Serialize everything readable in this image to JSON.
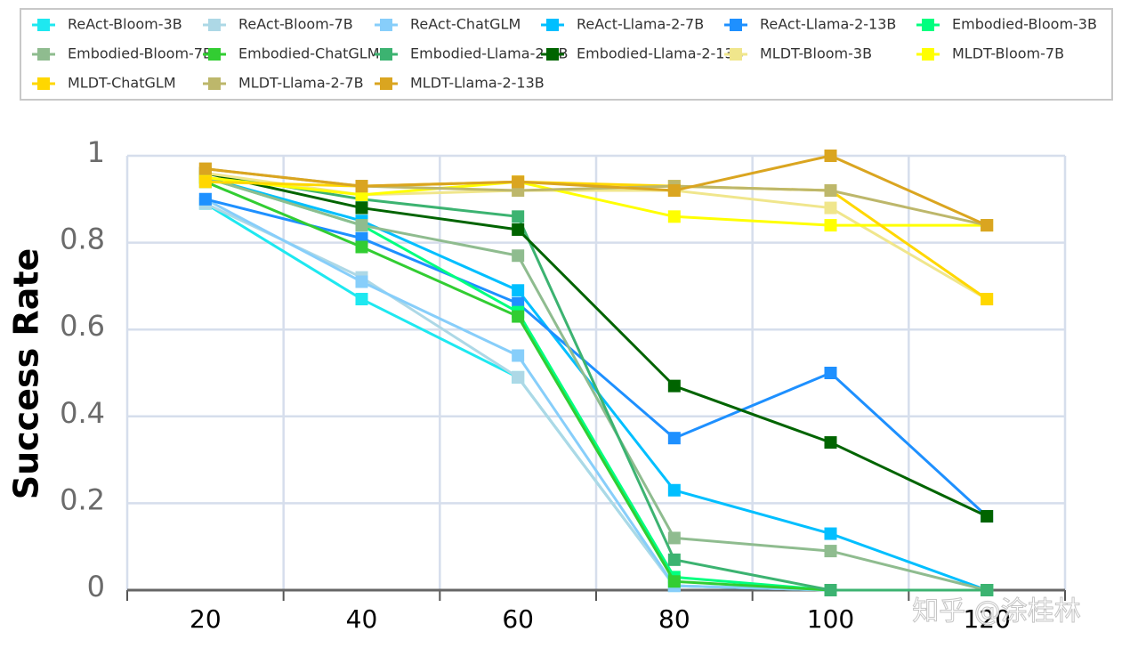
{
  "chart_data": {
    "type": "line",
    "categories": [
      "20",
      "40",
      "60",
      "80",
      "100",
      "120"
    ],
    "y_label": "Success Rate",
    "ylim": [
      0,
      1
    ],
    "yticks": [
      0,
      0.2,
      0.4,
      0.6,
      0.8,
      1
    ],
    "grid": true,
    "legend": "top",
    "watermark": "知乎 @涂桂林",
    "series": [
      {
        "name": "ReAct-Bloom-3B",
        "color": "#1ee8f0",
        "values": [
          0.89,
          0.67,
          0.49,
          0.01,
          0,
          0
        ]
      },
      {
        "name": "ReAct-Bloom-7B",
        "color": "#add8e6",
        "values": [
          0.89,
          0.72,
          0.49,
          0.01,
          0,
          0
        ]
      },
      {
        "name": "ReAct-ChatGLM",
        "color": "#87cefa",
        "values": [
          0.9,
          0.71,
          0.54,
          0.01,
          0,
          0
        ]
      },
      {
        "name": "ReAct-Llama-2-7B",
        "color": "#00bfff",
        "values": [
          0.95,
          0.85,
          0.69,
          0.23,
          0.13,
          0
        ]
      },
      {
        "name": "ReAct-Llama-2-13B",
        "color": "#1e90ff",
        "values": [
          0.9,
          0.81,
          0.66,
          0.35,
          0.5,
          0.17
        ]
      },
      {
        "name": "Embodied-Bloom-3B",
        "color": "#00ff7f",
        "values": [
          0.95,
          0.84,
          0.64,
          0.03,
          0,
          0
        ]
      },
      {
        "name": "Embodied-Bloom-7B",
        "color": "#8fbc8f",
        "values": [
          0.95,
          0.84,
          0.77,
          0.12,
          0.09,
          0
        ]
      },
      {
        "name": "Embodied-ChatGLM",
        "color": "#32cd32",
        "values": [
          0.94,
          0.79,
          0.63,
          0.02,
          0,
          0
        ]
      },
      {
        "name": "Embodied-Llama-2-7B",
        "color": "#3cb371",
        "values": [
          0.96,
          0.9,
          0.86,
          0.07,
          0,
          0
        ]
      },
      {
        "name": "Embodied-Llama-2-13B",
        "color": "#006400",
        "values": [
          0.96,
          0.88,
          0.83,
          0.47,
          0.34,
          0.17
        ]
      },
      {
        "name": "MLDT-Bloom-3B",
        "color": "#f0e68c",
        "values": [
          0.96,
          0.91,
          0.92,
          0.92,
          0.88,
          0.67
        ]
      },
      {
        "name": "MLDT-Bloom-7B",
        "color": "#ffff00",
        "values": [
          0.95,
          0.91,
          0.94,
          0.86,
          0.84,
          0.84
        ]
      },
      {
        "name": "MLDT-ChatGLM",
        "color": "#ffd700",
        "values": [
          0.94,
          0.93,
          0.94,
          0.93,
          0.92,
          0.67
        ]
      },
      {
        "name": "MLDT-Llama-2-7B",
        "color": "#bdb76b",
        "values": [
          0.97,
          0.93,
          0.92,
          0.93,
          0.92,
          0.84
        ]
      },
      {
        "name": "MLDT-Llama-2-13B",
        "color": "#daa520",
        "values": [
          0.97,
          0.93,
          0.94,
          0.92,
          1.0,
          0.84
        ]
      }
    ]
  }
}
